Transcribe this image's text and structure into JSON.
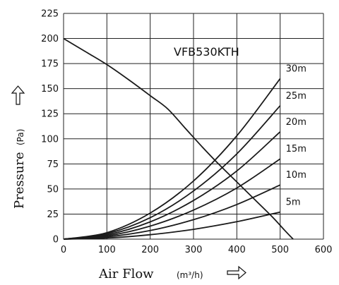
{
  "chart_data": {
    "type": "line",
    "title": "VFB530KTH",
    "xlabel": "Air Flow",
    "xunit": "(m³/h)",
    "ylabel": "Pressure",
    "yunit": "(Pa)",
    "xlim": [
      0,
      600
    ],
    "ylim": [
      0,
      225
    ],
    "xticks": [
      0,
      100,
      200,
      300,
      400,
      500,
      600
    ],
    "yticks": [
      0,
      25,
      50,
      75,
      100,
      125,
      150,
      175,
      200,
      225
    ],
    "grid": true,
    "fan_curve": {
      "x": [
        0,
        50,
        100,
        150,
        200,
        240,
        280,
        320,
        360,
        400,
        440,
        480,
        510,
        530
      ],
      "y": [
        200,
        187,
        174,
        159,
        143,
        130,
        111,
        92,
        74,
        57,
        40,
        23,
        9,
        0
      ]
    },
    "system_curves": [
      {
        "name": "30m",
        "x": [
          0,
          100,
          200,
          300,
          400,
          500
        ],
        "y": [
          0,
          6.5,
          26,
          58,
          103,
          160
        ]
      },
      {
        "name": "25m",
        "x": [
          0,
          100,
          200,
          300,
          400,
          500
        ],
        "y": [
          0,
          5.4,
          21.4,
          48,
          85,
          133
        ]
      },
      {
        "name": "20m",
        "x": [
          0,
          100,
          200,
          300,
          400,
          500
        ],
        "y": [
          0,
          4.3,
          17.2,
          38.5,
          68,
          107
        ]
      },
      {
        "name": "15m",
        "x": [
          0,
          100,
          200,
          300,
          400,
          500
        ],
        "y": [
          0,
          3.2,
          13,
          29,
          51,
          80
        ]
      },
      {
        "name": "10m",
        "x": [
          0,
          100,
          200,
          300,
          400,
          500
        ],
        "y": [
          0,
          2.2,
          8.6,
          19.4,
          34.5,
          54
        ]
      },
      {
        "name": "5m",
        "x": [
          0,
          100,
          200,
          300,
          400,
          500
        ],
        "y": [
          0,
          1.1,
          4.4,
          9.8,
          17.4,
          27
        ]
      }
    ]
  }
}
